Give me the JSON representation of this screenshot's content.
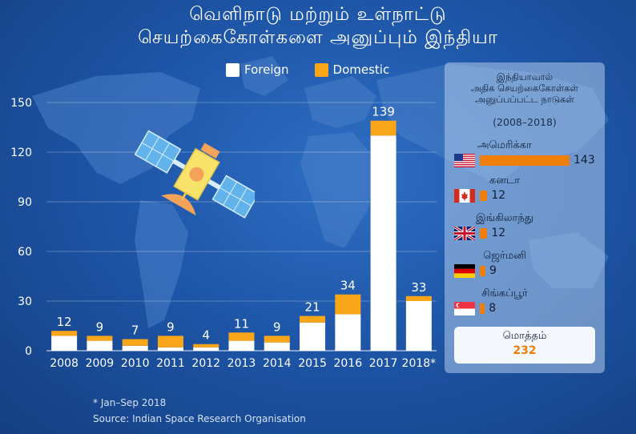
{
  "title": {
    "line1": "வெளிநாடு மற்றும் உள்நாட்டு",
    "line2": "செயற்கைகோள்களை அனுப்பும் இந்தியா"
  },
  "colors": {
    "foreign": "#ffffff",
    "domestic": "#f9a619",
    "accent": "#f07f0a"
  },
  "chart_data": {
    "type": "bar",
    "stacked": true,
    "categories": [
      "2008",
      "2009",
      "2010",
      "2011",
      "2012",
      "2013",
      "2014",
      "2015",
      "2016",
      "2017",
      "2018*"
    ],
    "series": [
      {
        "name": "Foreign",
        "values": [
          9,
          6,
          3,
          2,
          2,
          6,
          5,
          17,
          22,
          130,
          30
        ]
      },
      {
        "name": "Domestic",
        "values": [
          3,
          3,
          4,
          7,
          2,
          5,
          4,
          4,
          12,
          9,
          3
        ]
      }
    ],
    "totals": [
      "12",
      "9",
      "7",
      "9",
      "4",
      "11",
      "9",
      "21",
      "34",
      "139",
      "33"
    ],
    "ylim": [
      0,
      150
    ],
    "yticks": [
      "0",
      "30",
      "60",
      "90",
      "120",
      "150"
    ],
    "grid": true,
    "legend_position": "top"
  },
  "legend": {
    "foreign": "Foreign",
    "domestic": "Domestic"
  },
  "notes": {
    "footnote": "* Jan–Sep 2018",
    "source": "Source: Indian Space Research Organisation"
  },
  "panel": {
    "title_lines": [
      "இந்தியாவால்",
      "அதிக செயற்கைகோள்கள்",
      "அனுப்பப்பட்ட நாடுகள்"
    ],
    "period": "(2008–2018)",
    "max": 143,
    "countries": [
      {
        "name": "அமெரிக்கா",
        "value": 143,
        "label": "143",
        "flag": "usa-flag-icon"
      },
      {
        "name": "கனடா",
        "value": 12,
        "label": "12",
        "flag": "canada-flag-icon"
      },
      {
        "name": "இங்கிலாந்து",
        "value": 12,
        "label": "12",
        "flag": "uk-flag-icon"
      },
      {
        "name": "ஜெர்மனி",
        "value": 9,
        "label": "9",
        "flag": "germany-flag-icon"
      },
      {
        "name": "சிங்கப்பூர்",
        "value": 8,
        "label": "8",
        "flag": "singapore-flag-icon"
      }
    ],
    "total_label": "மொத்தம்",
    "total_value": "232"
  }
}
